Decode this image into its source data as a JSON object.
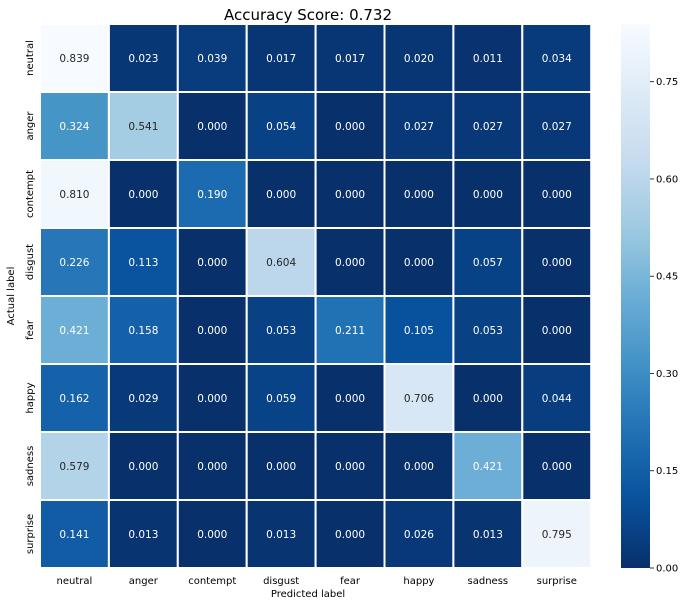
{
  "chart_data": {
    "type": "heatmap",
    "title": "Accuracy Score: 0.732",
    "xlabel": "Predicted label",
    "ylabel": "Actual label",
    "x_categories": [
      "neutral",
      "anger",
      "contempt",
      "disgust",
      "fear",
      "happy",
      "sadness",
      "surprise"
    ],
    "y_categories": [
      "neutral",
      "anger",
      "contempt",
      "disgust",
      "fear",
      "happy",
      "sadness",
      "surprise"
    ],
    "values": [
      [
        0.839,
        0.023,
        0.039,
        0.017,
        0.017,
        0.02,
        0.011,
        0.034
      ],
      [
        0.324,
        0.541,
        0.0,
        0.054,
        0.0,
        0.027,
        0.027,
        0.027
      ],
      [
        0.81,
        0.0,
        0.19,
        0.0,
        0.0,
        0.0,
        0.0,
        0.0
      ],
      [
        0.226,
        0.113,
        0.0,
        0.604,
        0.0,
        0.0,
        0.057,
        0.0
      ],
      [
        0.421,
        0.158,
        0.0,
        0.053,
        0.211,
        0.105,
        0.053,
        0.0
      ],
      [
        0.162,
        0.029,
        0.0,
        0.059,
        0.0,
        0.706,
        0.0,
        0.044
      ],
      [
        0.579,
        0.0,
        0.0,
        0.0,
        0.0,
        0.0,
        0.421,
        0.0
      ],
      [
        0.141,
        0.013,
        0.0,
        0.013,
        0.0,
        0.026,
        0.013,
        0.795
      ]
    ],
    "value_format_decimals": 3,
    "colormap": "Blues_r",
    "vmin": 0.0,
    "vmax": 0.839,
    "colorbar_ticks": [
      "0.00",
      "0.15",
      "0.30",
      "0.45",
      "0.60",
      "0.75"
    ],
    "colorbar_tick_values": [
      0.0,
      0.15,
      0.3,
      0.45,
      0.6,
      0.75
    ],
    "cell_separator_color": "#ffffff",
    "text_color": "#ffffff",
    "axis_text_color": "#000000"
  }
}
